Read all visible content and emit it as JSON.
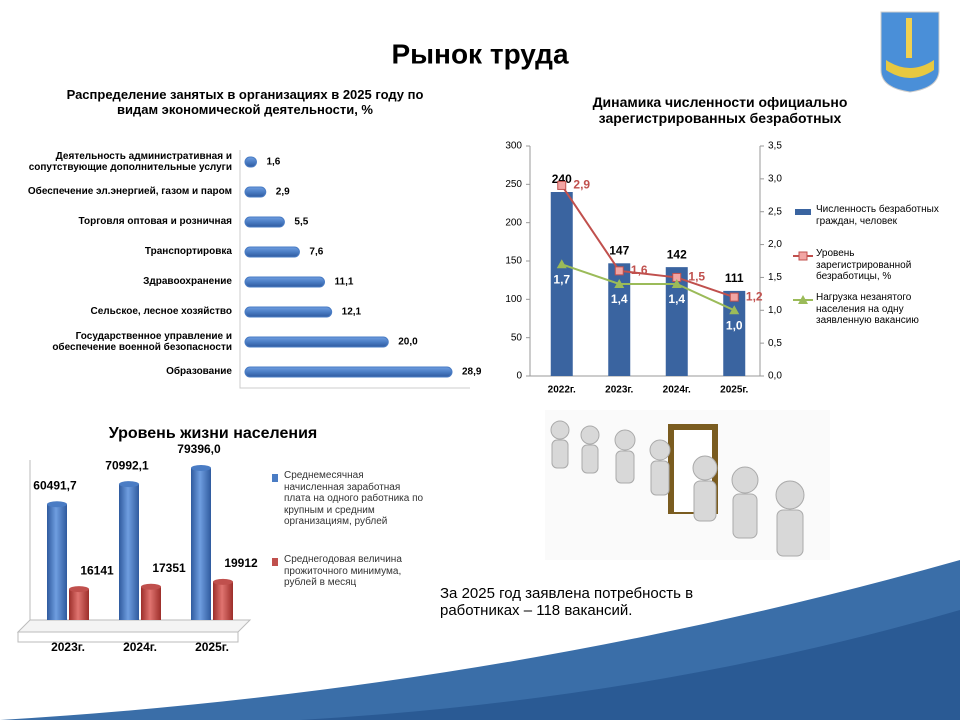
{
  "title": "Рынок труда",
  "note": "За 2025 год заявлена потребность в работниках  – 118 вакансий.",
  "chart_data": [
    {
      "type": "hbar",
      "title": "Распределение занятых в организациях в 2025 году по видам экономической деятельности, %",
      "categories": [
        "Деятельность административная и\nсопутствующие дополнительные услуги",
        "Обеспечение эл.энергией, газом и паром",
        "Торговля оптовая и розничная",
        "Транспортировка",
        "Здравоохранение",
        "Сельское, лесное хозяйство",
        "Государственное управление и\nобеспечение военной безопасности",
        "Образование"
      ],
      "values": [
        1.6,
        2.9,
        5.5,
        7.6,
        11.1,
        12.1,
        20.0,
        28.9
      ],
      "value_labels": [
        "1,6",
        "2,9",
        "5,5",
        "7,6",
        "11,1",
        "12,1",
        "20,0",
        "28,9"
      ],
      "color": "#4a7cc4"
    },
    {
      "type": "combo",
      "title": "Динамика численности официально зарегистрированных безработных",
      "categories": [
        "2022г.",
        "2023г.",
        "2024г.",
        "2025г."
      ],
      "series": [
        {
          "name": "Численность безработных граждан, человек",
          "color": "#3a64a0",
          "kind": "bar",
          "values": [
            240,
            147,
            142,
            111
          ]
        },
        {
          "name": "Уровень зарегистрированной безработицы, %",
          "color": "#c0504d",
          "kind": "line",
          "axis": "y2",
          "values": [
            2.9,
            1.6,
            1.5,
            1.2
          ],
          "value_labels": [
            "2,9",
            "1,6",
            "1,5",
            "1,2"
          ]
        },
        {
          "name": "Нагрузка незанятого населения на одну заявленную вакансию",
          "color": "#9bbb59",
          "kind": "line",
          "axis": "y2",
          "values": [
            1.7,
            1.4,
            1.4,
            1.0
          ],
          "value_labels": [
            "1,7",
            "1,4",
            "1,4",
            "1,0"
          ]
        }
      ],
      "ylim": [
        0,
        300
      ],
      "yticks": [
        0,
        50,
        100,
        150,
        200,
        250,
        300
      ],
      "y2lim": [
        0,
        3.5
      ],
      "y2ticks": [
        {
          "value": 0,
          "label": "0,0"
        },
        {
          "value": 0.5,
          "label": "0,5"
        },
        {
          "value": 1,
          "label": "1,0"
        },
        {
          "value": 1.5,
          "label": "1,5"
        },
        {
          "value": 2,
          "label": "2,0"
        },
        {
          "value": 2.5,
          "label": "2,5"
        },
        {
          "value": 3,
          "label": "3,0"
        },
        {
          "value": 3.5,
          "label": "3,5"
        }
      ]
    },
    {
      "type": "bar",
      "title": "Уровень жизни населения",
      "categories": [
        "2023г.",
        "2024г.",
        "2025г."
      ],
      "series": [
        {
          "name": "Среднемесячная начисленная заработная плата на одного работника по крупным и средним организациям, рублей",
          "color": "#4a7cc4",
          "values": [
            60491.7,
            70992.1,
            79396.0
          ],
          "value_labels": [
            "60491,7",
            "70992,1",
            "79396,0"
          ]
        },
        {
          "name": "Среднегодовая величина прожиточного минимума, рублей в месяц",
          "color": "#c0504d",
          "values": [
            16141,
            17351,
            19912
          ]
        }
      ]
    }
  ]
}
